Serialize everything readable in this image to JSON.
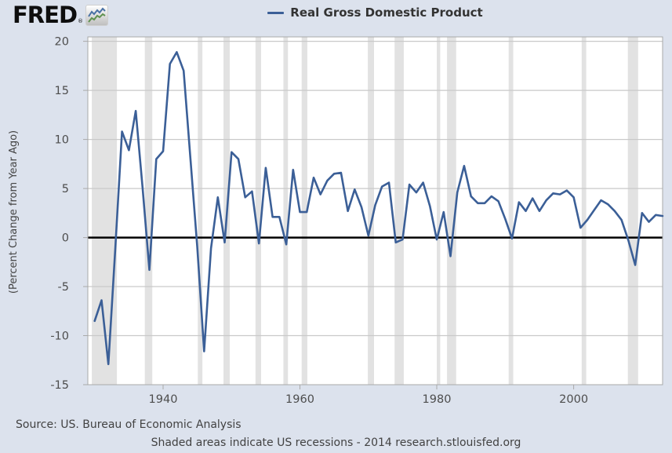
{
  "branding": {
    "logo_text": "FRED",
    "registered_mark": "®",
    "logo_icon": "fred-sparkline-icon"
  },
  "legend": {
    "label": "Real Gross Domestic Product"
  },
  "footer": {
    "source": "Source: US. Bureau of Economic Analysis",
    "note": "Shaded areas indicate US recessions - 2014 research.stlouisfed.org"
  },
  "chart_data": {
    "type": "line",
    "title": "Real Gross Domestic Product",
    "xlabel": "",
    "ylabel": "(Percent Change from Year Ago)",
    "xlim": [
      1929,
      2013
    ],
    "ylim": [
      -15,
      20.45
    ],
    "x_ticks": [
      1940,
      1960,
      1980,
      2000
    ],
    "y_ticks": [
      -15,
      -10,
      -5,
      0,
      5,
      10,
      15,
      20
    ],
    "grid": true,
    "zero_line": true,
    "legend_position": "top-center",
    "series": [
      {
        "name": "Real Gross Domestic Product",
        "color": "#3b5f97",
        "x": [
          1930,
          1931,
          1932,
          1933,
          1934,
          1935,
          1936,
          1937,
          1938,
          1939,
          1940,
          1941,
          1942,
          1943,
          1944,
          1945,
          1946,
          1947,
          1948,
          1949,
          1950,
          1951,
          1952,
          1953,
          1954,
          1955,
          1956,
          1957,
          1958,
          1959,
          1960,
          1961,
          1962,
          1963,
          1964,
          1965,
          1966,
          1967,
          1968,
          1969,
          1970,
          1971,
          1972,
          1973,
          1974,
          1975,
          1976,
          1977,
          1978,
          1979,
          1980,
          1981,
          1982,
          1983,
          1984,
          1985,
          1986,
          1987,
          1988,
          1989,
          1990,
          1991,
          1992,
          1993,
          1994,
          1995,
          1996,
          1997,
          1998,
          1999,
          2000,
          2001,
          2002,
          2003,
          2004,
          2005,
          2006,
          2007,
          2008,
          2009,
          2010,
          2011,
          2012,
          2013
        ],
        "values": [
          -8.5,
          -6.4,
          -12.9,
          -1.3,
          10.8,
          8.9,
          12.9,
          5.1,
          -3.3,
          8.0,
          8.8,
          17.7,
          18.9,
          17.0,
          8.0,
          -1.0,
          -11.6,
          -1.1,
          4.1,
          -0.5,
          8.7,
          8.0,
          4.1,
          4.7,
          -0.6,
          7.1,
          2.1,
          2.1,
          -0.7,
          6.9,
          2.6,
          2.6,
          6.1,
          4.4,
          5.8,
          6.5,
          6.6,
          2.7,
          4.9,
          3.1,
          0.2,
          3.3,
          5.2,
          5.6,
          -0.5,
          -0.2,
          5.4,
          4.6,
          5.6,
          3.2,
          -0.2,
          2.6,
          -1.9,
          4.6,
          7.3,
          4.2,
          3.5,
          3.5,
          4.2,
          3.7,
          1.9,
          -0.1,
          3.6,
          2.7,
          4.0,
          2.7,
          3.8,
          4.5,
          4.4,
          4.8,
          4.1,
          1.0,
          1.8,
          2.8,
          3.8,
          3.4,
          2.7,
          1.8,
          -0.3,
          -2.8,
          2.5,
          1.6,
          2.3,
          2.2
        ]
      }
    ],
    "recessions": [
      [
        1929.58,
        1933.25
      ],
      [
        1937.33,
        1938.42
      ],
      [
        1945.08,
        1945.75
      ],
      [
        1948.83,
        1949.75
      ],
      [
        1953.5,
        1954.33
      ],
      [
        1957.58,
        1958.25
      ],
      [
        1960.25,
        1961.08
      ],
      [
        1969.92,
        1970.83
      ],
      [
        1973.83,
        1975.17
      ],
      [
        1980.0,
        1980.5
      ],
      [
        1981.5,
        1982.83
      ],
      [
        1990.5,
        1991.17
      ],
      [
        2001.17,
        2001.83
      ],
      [
        2007.92,
        2009.42
      ]
    ],
    "colors": {
      "background": "#dce2ed",
      "plot_background": "#ffffff",
      "recession_band": "#e2e2e2",
      "gridline": "#c9c9c9",
      "zero_line": "#000000",
      "axis_border": "#a9a9a9",
      "tick_text": "#4d4d4d",
      "series_line": "#3b5f97"
    }
  }
}
